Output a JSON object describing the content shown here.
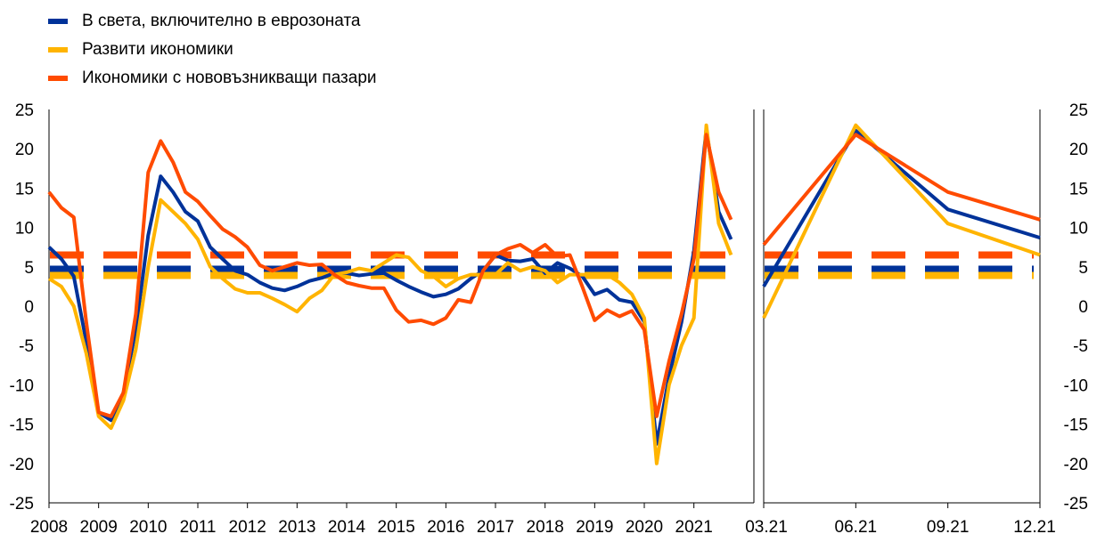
{
  "legend": [
    {
      "label": "В света, включително в еврозоната",
      "color": "#003299"
    },
    {
      "label": "Развити икономики",
      "color": "#FFB400"
    },
    {
      "label": "Икономики с нововъзникващи пазари",
      "color": "#FF4B00"
    }
  ],
  "chart_data": [
    {
      "type": "line",
      "ylim": [
        -25,
        25
      ],
      "yticks": [
        25,
        20,
        15,
        10,
        5,
        0,
        -5,
        -10,
        -15,
        -20,
        -25
      ],
      "xlim": [
        2008.0,
        2021.85
      ],
      "xticks": [
        {
          "value": 2008,
          "label": "2008"
        },
        {
          "value": 2009,
          "label": "2009"
        },
        {
          "value": 2010,
          "label": "2010"
        },
        {
          "value": 2011,
          "label": "2011"
        },
        {
          "value": 2012,
          "label": "2012"
        },
        {
          "value": 2013,
          "label": "2013"
        },
        {
          "value": 2014,
          "label": "2014"
        },
        {
          "value": 2015,
          "label": "2015"
        },
        {
          "value": 2016,
          "label": "2016"
        },
        {
          "value": 2017,
          "label": "2017"
        },
        {
          "value": 2018,
          "label": "2018"
        },
        {
          "value": 2019,
          "label": "2019"
        },
        {
          "value": 2020,
          "label": "2020"
        },
        {
          "value": 2021,
          "label": "2021"
        }
      ],
      "series": [
        {
          "name": "В света, включително в еврозоната",
          "color": "#003299",
          "x": [
            2008.0,
            2008.25,
            2008.5,
            2008.75,
            2009.0,
            2009.25,
            2009.5,
            2009.75,
            2010.0,
            2010.25,
            2010.5,
            2010.75,
            2011.0,
            2011.25,
            2011.5,
            2011.75,
            2012.0,
            2012.25,
            2012.5,
            2012.75,
            2013.0,
            2013.25,
            2013.5,
            2013.75,
            2014.0,
            2014.25,
            2014.5,
            2014.75,
            2015.0,
            2015.25,
            2015.5,
            2015.75,
            2016.0,
            2016.25,
            2016.5,
            2016.75,
            2017.0,
            2017.25,
            2017.5,
            2017.75,
            2018.0,
            2018.25,
            2018.5,
            2018.75,
            2019.0,
            2019.25,
            2019.5,
            2019.75,
            2020.0,
            2020.25,
            2020.5,
            2020.75,
            2021.0,
            2021.25,
            2021.5,
            2021.75
          ],
          "y": [
            7.5,
            6.0,
            3.8,
            -4.5,
            -13.5,
            -14.5,
            -11.0,
            -3.0,
            9.0,
            16.5,
            14.5,
            12.0,
            10.8,
            7.5,
            6.0,
            4.5,
            4.0,
            3.0,
            2.3,
            2.0,
            2.5,
            3.2,
            3.6,
            4.2,
            4.2,
            3.9,
            4.1,
            4.2,
            3.3,
            2.5,
            1.8,
            1.2,
            1.5,
            2.2,
            3.5,
            4.5,
            6.5,
            5.8,
            5.7,
            6.0,
            4.2,
            5.5,
            4.8,
            3.8,
            1.5,
            2.1,
            0.8,
            0.5,
            -2.0,
            -17.5,
            -9.0,
            -2.0,
            7.0,
            22.5,
            12.0,
            8.5
          ]
        },
        {
          "name": "Развити икономики",
          "color": "#FFB400",
          "x": [
            2008.0,
            2008.25,
            2008.5,
            2008.75,
            2009.0,
            2009.25,
            2009.5,
            2009.75,
            2010.0,
            2010.25,
            2010.5,
            2010.75,
            2011.0,
            2011.25,
            2011.5,
            2011.75,
            2012.0,
            2012.25,
            2012.5,
            2012.75,
            2013.0,
            2013.25,
            2013.5,
            2013.75,
            2014.0,
            2014.25,
            2014.5,
            2014.75,
            2015.0,
            2015.25,
            2015.5,
            2015.75,
            2016.0,
            2016.25,
            2016.5,
            2016.75,
            2017.0,
            2017.25,
            2017.5,
            2017.75,
            2018.0,
            2018.25,
            2018.5,
            2018.75,
            2019.0,
            2019.25,
            2019.5,
            2019.75,
            2020.0,
            2020.25,
            2020.5,
            2020.75,
            2021.0,
            2021.25,
            2021.5,
            2021.75
          ],
          "y": [
            3.5,
            2.5,
            0.0,
            -6.0,
            -14.0,
            -15.5,
            -12.0,
            -5.5,
            5.0,
            13.5,
            12.0,
            10.5,
            8.5,
            5.0,
            3.5,
            2.2,
            1.7,
            1.7,
            1.0,
            0.2,
            -0.7,
            1.0,
            2.0,
            4.0,
            4.3,
            4.8,
            4.5,
            5.5,
            6.5,
            6.2,
            4.5,
            3.8,
            2.5,
            3.5,
            4.0,
            4.0,
            4.0,
            5.5,
            4.5,
            5.0,
            4.5,
            3.0,
            4.0,
            4.0,
            4.0,
            4.0,
            3.0,
            1.5,
            -1.5,
            -20.0,
            -10.0,
            -5.0,
            -1.5,
            23.0,
            10.5,
            6.5
          ]
        },
        {
          "name": "Икономики с нововъзникващи пазари",
          "color": "#FF4B00",
          "x": [
            2008.0,
            2008.25,
            2008.5,
            2008.75,
            2009.0,
            2009.25,
            2009.5,
            2009.75,
            2010.0,
            2010.25,
            2010.5,
            2010.75,
            2011.0,
            2011.25,
            2011.5,
            2011.75,
            2012.0,
            2012.25,
            2012.5,
            2012.75,
            2013.0,
            2013.25,
            2013.5,
            2013.75,
            2014.0,
            2014.25,
            2014.5,
            2014.75,
            2015.0,
            2015.25,
            2015.5,
            2015.75,
            2016.0,
            2016.25,
            2016.5,
            2016.75,
            2017.0,
            2017.25,
            2017.5,
            2017.75,
            2018.0,
            2018.25,
            2018.5,
            2018.75,
            2019.0,
            2019.25,
            2019.5,
            2019.75,
            2020.0,
            2020.25,
            2020.5,
            2020.75,
            2021.0,
            2021.25,
            2021.5,
            2021.75
          ],
          "y": [
            14.5,
            12.5,
            11.3,
            -2.0,
            -13.5,
            -14.0,
            -11.0,
            -1.0,
            17.0,
            21.0,
            18.3,
            14.5,
            13.3,
            11.5,
            9.8,
            8.8,
            7.5,
            5.2,
            4.5,
            5.0,
            5.5,
            5.2,
            5.3,
            4.0,
            3.0,
            2.6,
            2.3,
            2.3,
            -0.5,
            -2.0,
            -1.8,
            -2.3,
            -1.5,
            0.8,
            0.5,
            4.5,
            6.5,
            7.3,
            7.8,
            6.8,
            7.8,
            6.3,
            6.5,
            2.5,
            -1.8,
            -0.5,
            -1.3,
            -0.6,
            -3.0,
            -14.0,
            -7.0,
            -1.0,
            6.0,
            21.8,
            14.5,
            11.0
          ]
        }
      ],
      "reference_lines": [
        {
          "series": "В света, включително в еврозоната",
          "color": "#003299",
          "value": 4.7
        },
        {
          "series": "Развити икономики",
          "color": "#FFB400",
          "value": 3.9
        },
        {
          "series": "Икономики с нововъзникващи пазари",
          "color": "#FF4B00",
          "value": 6.5
        }
      ],
      "grid": false
    },
    {
      "type": "line",
      "ylim": [
        -25,
        25
      ],
      "yticks": [
        25,
        20,
        15,
        10,
        5,
        0,
        -5,
        -10,
        -15,
        -20,
        -25
      ],
      "categories": [
        "03.21",
        "06.21",
        "09.21",
        "12.21"
      ],
      "series": [
        {
          "name": "В света, включително в еврозоната",
          "color": "#003299",
          "values": [
            2.5,
            22.3,
            12.3,
            8.7
          ]
        },
        {
          "name": "Развити икономики",
          "color": "#FFB400",
          "values": [
            -1.5,
            23.0,
            10.5,
            6.5
          ]
        },
        {
          "name": "Икономики с нововъзникващи пазари",
          "color": "#FF4B00",
          "values": [
            7.8,
            21.8,
            14.5,
            11.0
          ]
        }
      ],
      "reference_lines": [
        {
          "series": "В света, включително в еврозоната",
          "color": "#003299",
          "value": 4.7
        },
        {
          "series": "Развити икономики",
          "color": "#FFB400",
          "value": 3.9
        },
        {
          "series": "Икономики с нововъзникващи пазари",
          "color": "#FF4B00",
          "value": 6.5
        }
      ],
      "grid": false
    }
  ]
}
